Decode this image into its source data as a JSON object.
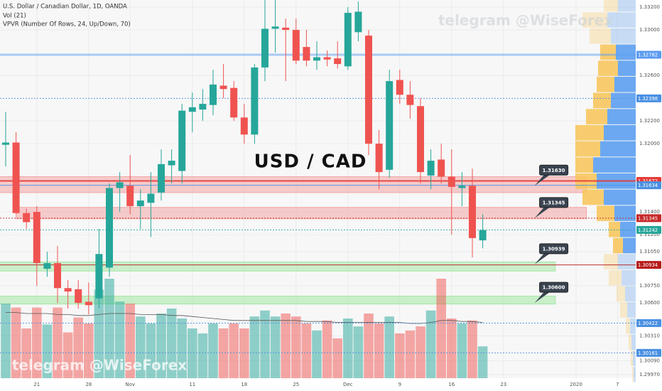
{
  "chart_data": {
    "type": "candlestick",
    "title": "U.S. Dollar / Canadian Dollar, 1D, OANDA",
    "indicators": [
      "Vol (21)",
      "VPVR (Number Of Rows, 24, Up/Down, 70)"
    ],
    "annotation": "USD / CAD",
    "watermark": "telegram @WiseForex",
    "up_color": "#26a69a",
    "down_color": "#ef5350",
    "categories": [
      null,
      null,
      null,
      "21",
      null,
      null,
      null,
      null,
      "28",
      null,
      null,
      null,
      "Nov",
      null,
      null,
      null,
      null,
      null,
      "11",
      null,
      null,
      null,
      null,
      "18",
      null,
      null,
      null,
      null,
      "25",
      null,
      null,
      null,
      null,
      "Dec",
      null,
      null,
      null,
      null,
      "9",
      null,
      null,
      null,
      null,
      "16",
      null,
      null,
      null,
      null,
      "23",
      null,
      null,
      null,
      null,
      null,
      null,
      "2020",
      null,
      null,
      null,
      "7",
      null
    ],
    "open": [
      1.3199,
      1.3201,
      1.3139,
      1.314,
      1.309,
      1.3095,
      1.3073,
      1.3072,
      1.3061,
      1.3064,
      1.3091,
      1.3161,
      1.3163,
      1.3145,
      1.3148,
      1.3157,
      1.3181,
      1.3176,
      1.3228,
      1.323,
      1.3234,
      1.3251,
      1.3249,
      1.3223,
      1.3208,
      1.3267,
      1.3301,
      1.3302,
      1.33,
      1.3285,
      1.3273,
      1.3276,
      1.3275,
      1.3268,
      1.3298,
      1.3295,
      1.32,
      1.3177,
      1.3256,
      1.3243,
      1.3233,
      1.3172,
      1.3186,
      1.3171,
      1.3161,
      1.3163,
      1.3115,
      null,
      null,
      null,
      null,
      null,
      null,
      null,
      null,
      null,
      null,
      null,
      null,
      null,
      null
    ],
    "high": [
      1.3228,
      1.321,
      1.3143,
      1.3145,
      1.3105,
      1.311,
      1.308,
      1.308,
      1.3078,
      1.3125,
      1.3165,
      1.3175,
      1.319,
      1.316,
      1.3175,
      1.3195,
      1.3195,
      1.3235,
      1.3245,
      1.3248,
      1.3265,
      1.327,
      1.3255,
      1.3235,
      1.327,
      1.333,
      1.333,
      1.331,
      1.331,
      1.33,
      1.329,
      1.3282,
      1.329,
      1.332,
      1.3325,
      1.33,
      1.3212,
      1.3265,
      1.3265,
      1.3255,
      1.324,
      1.3195,
      1.32,
      1.3195,
      1.3175,
      1.3178,
      1.3138,
      null,
      null,
      null,
      null,
      null,
      null,
      null,
      null,
      null,
      null,
      null,
      null,
      null,
      null
    ],
    "low": [
      1.318,
      1.3138,
      1.3125,
      1.3075,
      1.3083,
      1.306,
      1.3055,
      1.3055,
      1.305,
      1.3055,
      1.3083,
      1.314,
      1.3138,
      1.3125,
      1.3118,
      1.315,
      1.3165,
      1.3165,
      1.321,
      1.322,
      1.3225,
      1.324,
      1.322,
      1.32,
      1.32,
      1.3255,
      1.328,
      1.3255,
      1.327,
      1.3268,
      1.3265,
      1.3268,
      1.3266,
      1.3265,
      1.329,
      1.319,
      1.316,
      1.317,
      1.3235,
      1.3222,
      1.3165,
      1.316,
      1.3165,
      1.312,
      1.3145,
      1.31,
      1.3108,
      null,
      null,
      null,
      null,
      null,
      null,
      null,
      null,
      null,
      null,
      null,
      null,
      null,
      null
    ],
    "close": [
      1.3201,
      1.3139,
      1.3131,
      1.3095,
      1.3095,
      1.3073,
      1.307,
      1.306,
      1.3058,
      1.3103,
      1.3161,
      1.3166,
      1.3145,
      1.315,
      1.3156,
      1.3182,
      1.3185,
      1.3229,
      1.3232,
      1.3235,
      1.3252,
      1.3248,
      1.3223,
      1.3208,
      1.3267,
      1.3301,
      1.3303,
      1.33,
      1.3273,
      1.3273,
      1.3276,
      1.3274,
      1.327,
      1.3315,
      1.3316,
      1.32,
      1.3175,
      1.3255,
      1.3243,
      1.3234,
      1.3175,
      1.3185,
      1.3171,
      1.3162,
      1.3163,
      1.3117,
      1.3124,
      null,
      null,
      null,
      null,
      null,
      null,
      null,
      null,
      null,
      null,
      null,
      null,
      null,
      null
    ],
    "volume": [
      75,
      71,
      50,
      71,
      54,
      71,
      46,
      61,
      55,
      89,
      100,
      77,
      75,
      62,
      55,
      65,
      70,
      60,
      50,
      45,
      55,
      50,
      55,
      50,
      62,
      68,
      62,
      65,
      62,
      55,
      48,
      58,
      40,
      60,
      52,
      65,
      55,
      62,
      45,
      48,
      52,
      68,
      100,
      60,
      55,
      58,
      32,
      null,
      null,
      null,
      null,
      null,
      null,
      null,
      null,
      null,
      null,
      null,
      null,
      null,
      null
    ],
    "volume_ma": [
      66,
      66,
      65,
      65,
      65,
      64,
      64,
      63,
      63,
      64,
      65,
      65,
      65,
      64,
      64,
      64,
      63,
      63,
      62,
      61,
      60,
      59,
      58,
      58,
      58,
      58,
      58,
      58,
      58,
      57,
      57,
      57,
      56,
      56,
      56,
      56,
      56,
      56,
      56,
      55,
      55,
      56,
      58,
      58,
      57,
      57,
      56,
      null,
      null,
      null,
      null,
      null,
      null,
      null,
      null,
      null,
      null,
      null,
      null,
      null,
      null
    ],
    "vlim": [
      0,
      100
    ],
    "ylim": [
      1.29938,
      1.33263
    ],
    "yticks": [
      {
        "value": 1.332,
        "label": "1.33200"
      },
      {
        "value": 1.33,
        "label": "1.33000"
      },
      {
        "value": 1.326,
        "label": "1.32600"
      },
      {
        "value": 1.322,
        "label": "1.32200"
      },
      {
        "value": 1.32,
        "label": "1.32000"
      },
      {
        "value": 1.314,
        "label": "1.31400"
      },
      {
        "value": 1.312,
        "label": "1.31200"
      },
      {
        "value": 1.3105,
        "label": "1.31050"
      },
      {
        "value": 1.3075,
        "label": "1.30750"
      },
      {
        "value": 1.306,
        "label": "1.30600"
      },
      {
        "value": 1.3031,
        "label": "1.30310"
      },
      {
        "value": 1.3009,
        "label": "1.30090"
      },
      {
        "value": 1.2997,
        "label": "1.29970"
      }
    ],
    "grid": true,
    "levels": [
      {
        "value": 1.32782,
        "label": "1.32782",
        "color": "#5b9bf0",
        "style": "solid",
        "width": 3
      },
      {
        "value": 1.32398,
        "label": "1.32398",
        "color": "#4a90e2",
        "style": "dotted",
        "width": 1
      },
      {
        "value": 1.31672,
        "label": "1.31672",
        "color": "#e53935",
        "style": "solid",
        "width": 2
      },
      {
        "value": 1.31634,
        "label": "1.31634",
        "color": "#4a90e2",
        "style": "solid",
        "width": 1
      },
      {
        "value": 1.31345,
        "label": "1.31345",
        "color": "#c62828",
        "style": "dotted",
        "width": 1
      },
      {
        "value": 1.31242,
        "label": "1.31242",
        "color": "#26a69a",
        "style": "dotted",
        "width": 1
      },
      {
        "value": 1.30934,
        "label": "1.30934",
        "color": "#b71c1c",
        "style": "solid",
        "width": 1
      },
      {
        "value": 1.30422,
        "label": "1.30422",
        "color": "#4a90e2",
        "style": "dotted",
        "width": 1
      },
      {
        "value": 1.30161,
        "label": "1.30161",
        "color": "#4a90e2",
        "style": "dotted",
        "width": 1
      }
    ],
    "zones": [
      {
        "from": 1.3157,
        "to": 1.3171,
        "x": [
          -1,
          56
        ],
        "color": "#f4a6a6"
      },
      {
        "from": 1.3134,
        "to": 1.3144,
        "x": [
          1,
          56
        ],
        "color": "#f4a6a6"
      },
      {
        "from": 1.3088,
        "to": 1.3096,
        "x": [
          -1,
          53
        ],
        "color": "#a6e8a6"
      },
      {
        "from": 1.3059,
        "to": 1.3066,
        "x": [
          -1,
          53
        ],
        "color": "#a6e8a6"
      }
    ],
    "callouts": [
      {
        "label": "1.31630",
        "value": 1.3163,
        "x": 51
      },
      {
        "label": "1.31345",
        "value": 1.31345,
        "x": 51
      },
      {
        "label": "1.30939",
        "value": 1.30939,
        "x": 51
      },
      {
        "label": "1.30600",
        "value": 1.306,
        "x": 51
      }
    ],
    "vpvr": {
      "bins": [
        1.299,
        1.30042,
        1.30183,
        1.30325,
        1.30467,
        1.30608,
        1.3075,
        1.30892,
        1.31033,
        1.31175,
        1.31317,
        1.31458,
        1.316,
        1.31742,
        1.31883,
        1.32025,
        1.32167,
        1.32308,
        1.3245,
        1.32592,
        1.32733,
        1.32875,
        1.33017,
        1.33158,
        1.333
      ],
      "up": [
        3,
        4,
        6,
        8,
        12,
        15,
        20,
        25,
        18,
        22,
        30,
        45,
        55,
        60,
        50,
        45,
        40,
        35,
        30,
        25,
        28,
        35,
        40,
        25
      ],
      "down": [
        2,
        3,
        4,
        6,
        10,
        12,
        18,
        20,
        14,
        16,
        25,
        30,
        30,
        25,
        35,
        40,
        30,
        25,
        25,
        28,
        22,
        30,
        35,
        20
      ],
      "up_color": "#5b9ef0",
      "down_color": "#f7c65e",
      "value_area": [
        1.3103,
        1.3287
      ]
    }
  }
}
